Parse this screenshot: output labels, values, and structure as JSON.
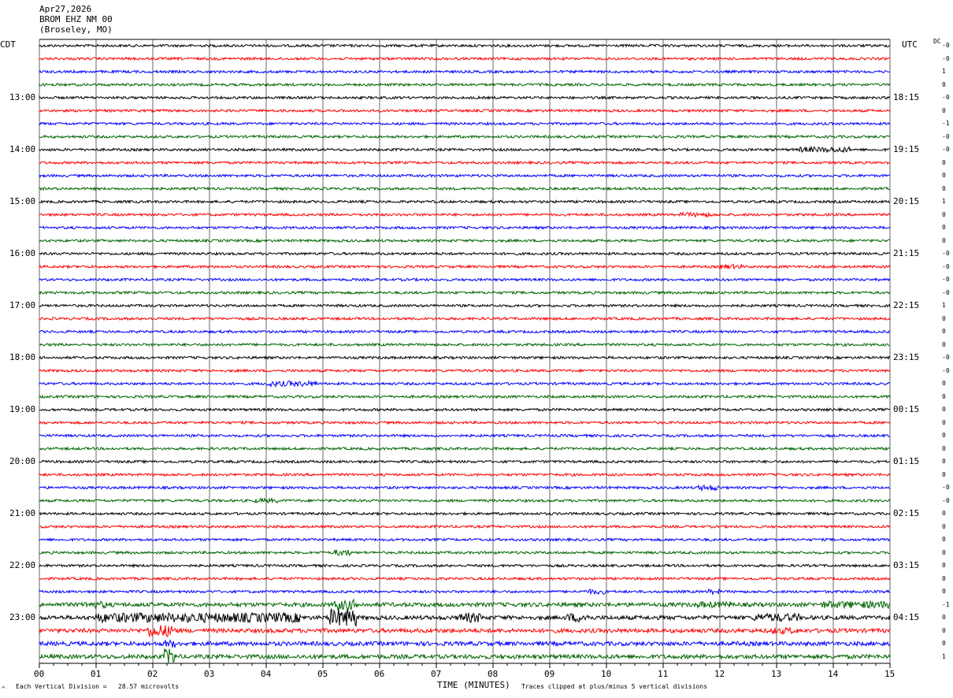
{
  "header": {
    "date": "Apr27,2026",
    "station": "BROM EHZ NM 00",
    "location": "(Broseley, MO)"
  },
  "left_tz": "CDT",
  "right_tz": "UTC",
  "dc_label": "DC",
  "footer": {
    "mark": "^",
    "scale_note": "Each Vertical Division =   28.57 microvolts",
    "xlabel": "TIME (MINUTES)",
    "clip_note": "Traces clipped at plus/minus 5 vertical divisions"
  },
  "colors": {
    "trace_cycle": [
      "#000000",
      "#ff0000",
      "#0000ff",
      "#006400"
    ],
    "grid": "#000000"
  },
  "chart_data": {
    "type": "line",
    "title": "",
    "xlabel": "TIME (MINUTES)",
    "x_ticks": [
      "00",
      "01",
      "02",
      "03",
      "04",
      "05",
      "06",
      "07",
      "08",
      "09",
      "10",
      "11",
      "12",
      "13",
      "14",
      "15"
    ],
    "xlim": [
      0,
      15
    ],
    "rows_per_hour": 4,
    "n_traces": 48,
    "left_hour_labels": [
      "13:00",
      "14:00",
      "15:00",
      "16:00",
      "17:00",
      "18:00",
      "19:00",
      "20:00",
      "21:00",
      "22:00",
      "23:00"
    ],
    "right_hour_labels": [
      "18:15",
      "19:15",
      "20:15",
      "21:15",
      "22:15",
      "23:15",
      "00:15",
      "01:15",
      "02:15",
      "03:15",
      "04:15"
    ],
    "dc_offsets": [
      "-0",
      "-0",
      "1",
      "0",
      "-0",
      "0",
      "-1",
      "-0",
      "-0",
      "0",
      "0",
      "0",
      "1",
      "0",
      "0",
      "0",
      "-0",
      "-0",
      "-0",
      "-0",
      "1",
      "0",
      "0",
      "0",
      "-0",
      "-0",
      "0",
      "0",
      "0",
      "0",
      "0",
      "0",
      "0",
      "0",
      "-0",
      "-0",
      "0",
      "0",
      "0",
      "0",
      "0",
      "0",
      "0",
      "-1",
      "0",
      "0",
      "0",
      "1"
    ],
    "microvolts_per_division": 28.57,
    "clip_divisions": 5
  }
}
